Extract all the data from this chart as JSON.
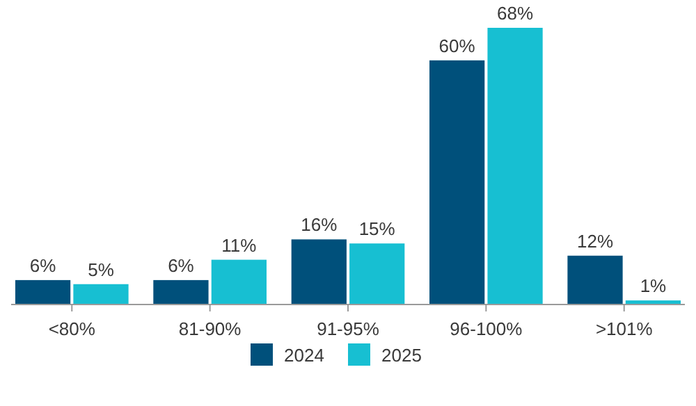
{
  "chart_data": {
    "type": "bar",
    "categories": [
      "<80%",
      "81-90%",
      "91-95%",
      "96-100%",
      ">101%"
    ],
    "series": [
      {
        "name": "2024",
        "color": "#00507b",
        "values": [
          6,
          6,
          16,
          60,
          12
        ],
        "value_labels": [
          "6%",
          "6%",
          "16%",
          "60%",
          "12%"
        ]
      },
      {
        "name": "2025",
        "color": "#17bfd2",
        "values": [
          5,
          11,
          15,
          68,
          1
        ],
        "value_labels": [
          "5%",
          "11%",
          "15%",
          "68%",
          "1%"
        ]
      }
    ],
    "legend": "bottom"
  }
}
